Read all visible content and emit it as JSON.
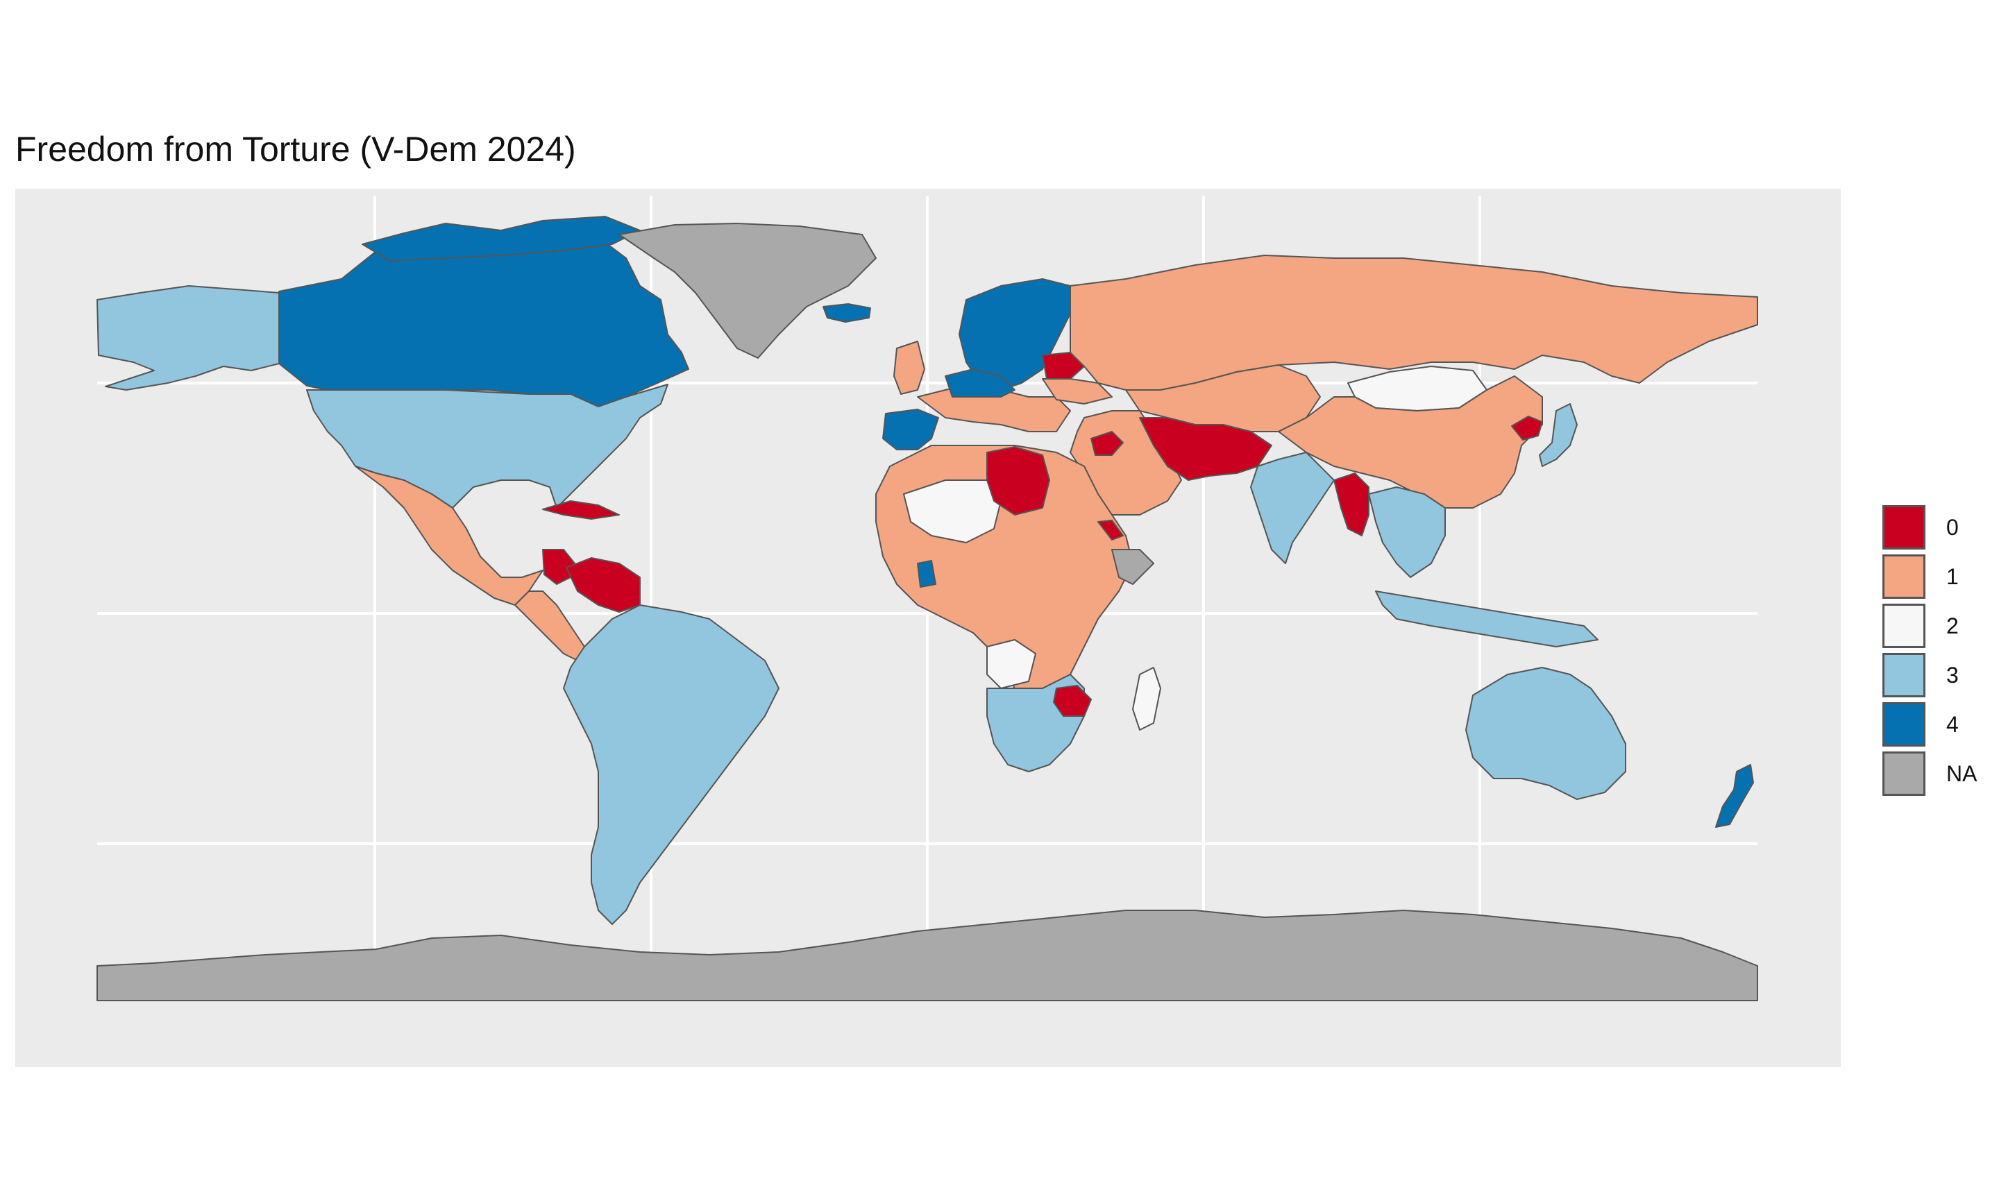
{
  "title": "Freedom from Torture (V-Dem 2024)",
  "legend": {
    "items": [
      {
        "label": "0",
        "color": "#ca0020"
      },
      {
        "label": "1",
        "color": "#f4a582"
      },
      {
        "label": "2",
        "color": "#f7f7f7"
      },
      {
        "label": "3",
        "color": "#92c5de"
      },
      {
        "label": "4",
        "color": "#0571b0"
      },
      {
        "label": "NA",
        "color": "#a9a9a9"
      }
    ]
  },
  "map": {
    "type": "choropleth",
    "projection": "equirectangular",
    "background": "#ebebeb",
    "gridline_color": "#ffffff",
    "border_color": "#555555",
    "regions": [
      {
        "name": "Canada",
        "value": "4"
      },
      {
        "name": "Greenland",
        "value": "NA"
      },
      {
        "name": "Iceland",
        "value": "4"
      },
      {
        "name": "Alaska (United States)",
        "value": "3"
      },
      {
        "name": "United States",
        "value": "3"
      },
      {
        "name": "Mexico",
        "value": "1"
      },
      {
        "name": "Cuba",
        "value": "0"
      },
      {
        "name": "Nicaragua",
        "value": "0"
      },
      {
        "name": "Venezuela",
        "value": "0"
      },
      {
        "name": "South America",
        "value": "3"
      },
      {
        "name": "Scandinavia",
        "value": "4"
      },
      {
        "name": "Russia",
        "value": "1"
      },
      {
        "name": "Belarus",
        "value": "0"
      },
      {
        "name": "Spain",
        "value": "4"
      },
      {
        "name": "Central Europe",
        "value": "4"
      },
      {
        "name": "Libya",
        "value": "0"
      },
      {
        "name": "Syria",
        "value": "0"
      },
      {
        "name": "Iran / Afghanistan",
        "value": "0"
      },
      {
        "name": "Myanmar",
        "value": "0"
      },
      {
        "name": "North Korea",
        "value": "0"
      },
      {
        "name": "Zimbabwe",
        "value": "0"
      },
      {
        "name": "Eritrea",
        "value": "0"
      },
      {
        "name": "Mongolia",
        "value": "2"
      },
      {
        "name": "Mali / Niger",
        "value": "2"
      },
      {
        "name": "Angola",
        "value": "2"
      },
      {
        "name": "Madagascar",
        "value": "2"
      },
      {
        "name": "China",
        "value": "1"
      },
      {
        "name": "Kazakhstan / Central Asia",
        "value": "1"
      },
      {
        "name": "Saudi Arabia / Middle East",
        "value": "1"
      },
      {
        "name": "North & Central Africa",
        "value": "1"
      },
      {
        "name": "India",
        "value": "3"
      },
      {
        "name": "Japan",
        "value": "3"
      },
      {
        "name": "Southeast Asia",
        "value": "3"
      },
      {
        "name": "Indonesia",
        "value": "3"
      },
      {
        "name": "Australia",
        "value": "3"
      },
      {
        "name": "Southern Africa",
        "value": "3"
      },
      {
        "name": "New Zealand",
        "value": "4"
      },
      {
        "name": "Ghana",
        "value": "4"
      },
      {
        "name": "Somalia",
        "value": "NA"
      },
      {
        "name": "Antarctica",
        "value": "NA"
      }
    ]
  }
}
